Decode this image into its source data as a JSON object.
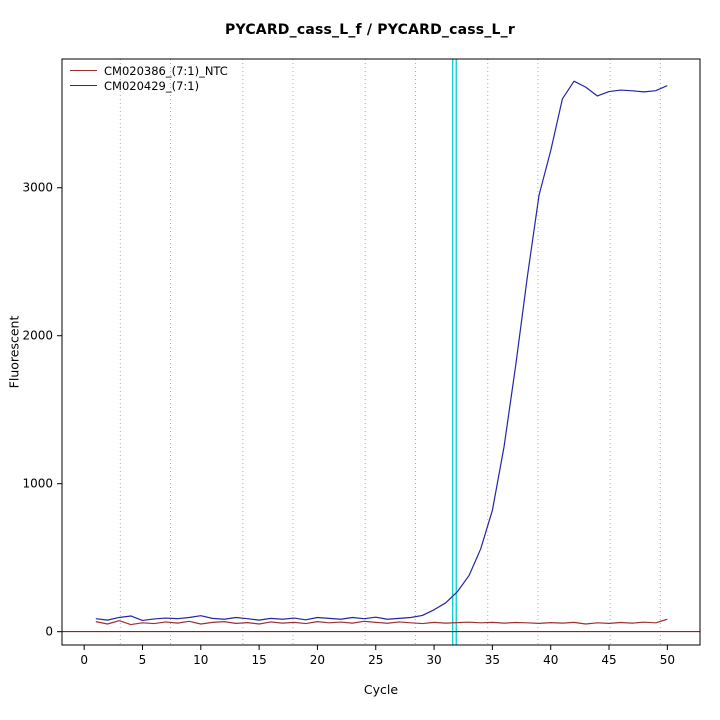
{
  "chart_data": {
    "type": "line",
    "title": "PYCARD_cass_L_f / PYCARD_cass_L_r",
    "xlabel": "Cycle",
    "ylabel": "Fluorescent",
    "x_ticks": [
      0,
      5,
      10,
      15,
      20,
      25,
      30,
      35,
      40,
      45,
      50
    ],
    "y_ticks": [
      0,
      1000,
      2000,
      3000
    ],
    "xlim": [
      -1.9,
      52.8
    ],
    "ylim": [
      -90,
      3870
    ],
    "grid": "dotted-vertical",
    "gridlines_x": [
      3.1,
      7.4,
      13.6,
      17.9,
      24.1,
      28.4,
      34.6,
      38.9,
      45.1,
      49.4
    ],
    "threshold_cycles": [
      31.6,
      31.9
    ],
    "zero_line_y": 0,
    "legend_position": "top-left",
    "colors": {
      "grid": "#ABABAB",
      "threshold": "#00CDCD",
      "zero_line": "#8B0000",
      "box": "#000000",
      "text": "#000000"
    },
    "x": [
      1,
      2,
      3,
      4,
      5,
      6,
      7,
      8,
      9,
      10,
      11,
      12,
      13,
      14,
      15,
      16,
      17,
      18,
      19,
      20,
      21,
      22,
      23,
      24,
      25,
      26,
      27,
      28,
      29,
      30,
      31,
      32,
      33,
      34,
      35,
      36,
      37,
      38,
      39,
      40,
      41,
      42,
      43,
      44,
      45,
      46,
      47,
      48,
      49,
      50
    ],
    "series": [
      {
        "name": "CM020386_(7:1)_NTC",
        "color": "#9E3032",
        "values": [
          68,
          52,
          74,
          48,
          60,
          55,
          66,
          58,
          70,
          52,
          63,
          68,
          56,
          61,
          52,
          66,
          58,
          63,
          55,
          68,
          60,
          65,
          58,
          70,
          63,
          57,
          66,
          60,
          55,
          63,
          58,
          61,
          64,
          60,
          63,
          58,
          62,
          60,
          56,
          61,
          58,
          63,
          52,
          60,
          56,
          62,
          58,
          64,
          60,
          84
        ]
      },
      {
        "name": "CM020429_(7:1)",
        "color": "#2424A8",
        "values": [
          88,
          78,
          96,
          106,
          76,
          86,
          92,
          88,
          96,
          108,
          90,
          84,
          96,
          88,
          78,
          90,
          84,
          92,
          80,
          96,
          90,
          84,
          96,
          88,
          98,
          84,
          90,
          96,
          110,
          148,
          195,
          270,
          380,
          560,
          820,
          1250,
          1800,
          2400,
          2950,
          3250,
          3600,
          3720,
          3680,
          3620,
          3650,
          3660,
          3655,
          3648,
          3656,
          3690
        ]
      }
    ]
  }
}
